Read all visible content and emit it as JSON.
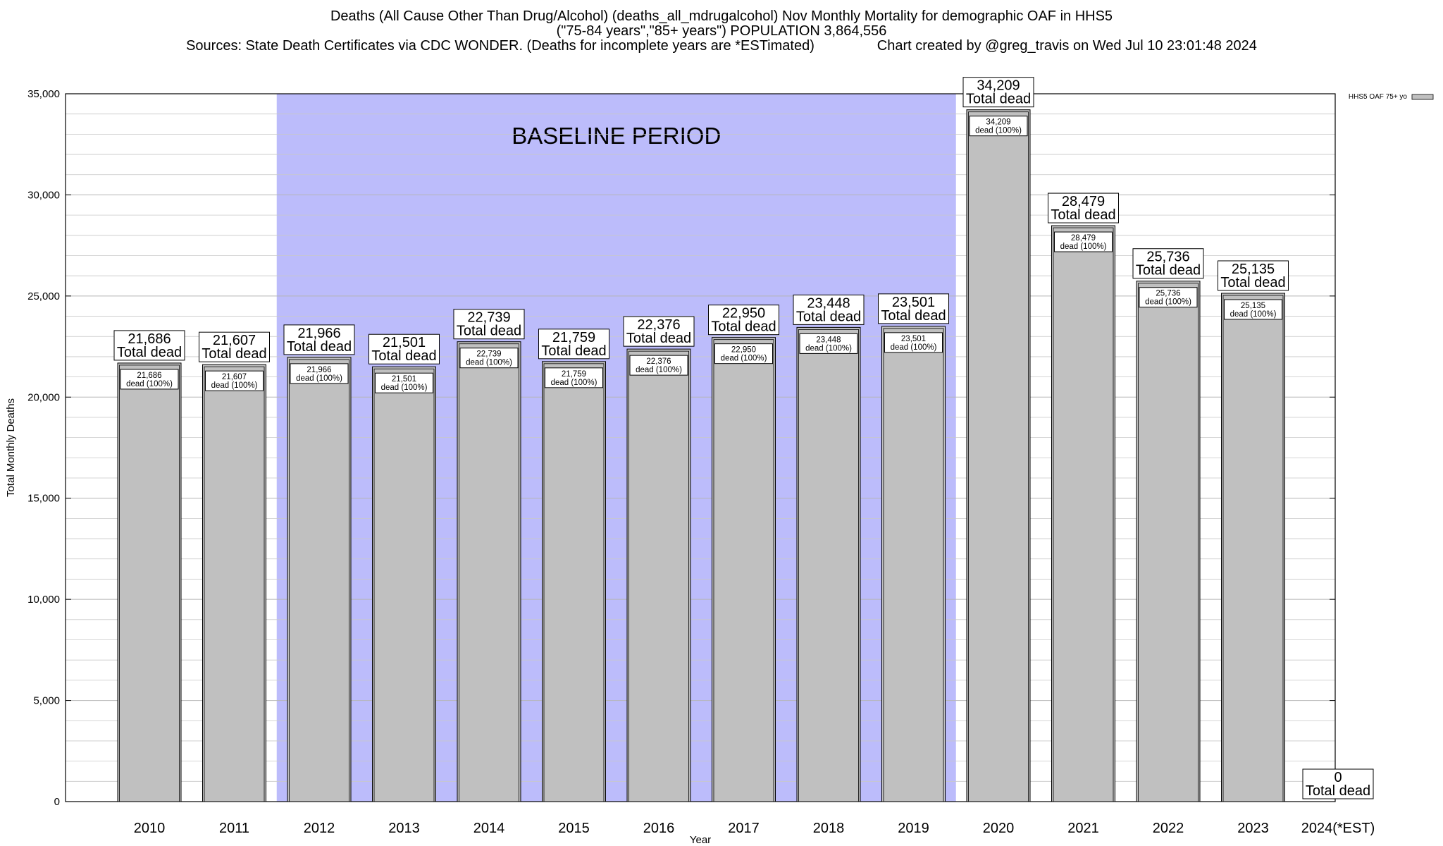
{
  "chart_data": {
    "type": "bar",
    "title_lines": [
      "Deaths (All Cause Other Than Drug/Alcohol) (deaths_all_mdrugalcohol) Nov Monthly Mortality for demographic OAF in HHS5",
      "(\"75-84 years\",\"85+ years\") POPULATION 3,864,556",
      "Sources: State Death Certificates via CDC WONDER. (Deaths for incomplete years are *ESTimated)                Chart created by @greg_travis on Wed Jul 10 23:01:48 2024"
    ],
    "xlabel": "Year",
    "ylabel": "Total Monthly Deaths",
    "ylim": [
      0,
      35000
    ],
    "yticks": [
      0,
      5000,
      10000,
      15000,
      20000,
      25000,
      30000,
      35000
    ],
    "ytick_labels": [
      "0",
      "5,000",
      "10,000",
      "15,000",
      "20,000",
      "25,000",
      "30,000",
      "35,000"
    ],
    "grid": "horizontal",
    "legend": {
      "position": "top-right",
      "entries": [
        "HHS5 OAF 75+ yo"
      ]
    },
    "categories": [
      "2010",
      "2011",
      "2012",
      "2013",
      "2014",
      "2015",
      "2016",
      "2017",
      "2018",
      "2019",
      "2020",
      "2021",
      "2022",
      "2023",
      "2024(*EST)"
    ],
    "series": [
      {
        "name": "HHS5 OAF 75+ yo",
        "values": [
          21686,
          21607,
          21966,
          21501,
          22739,
          21759,
          22376,
          22950,
          23448,
          23501,
          34209,
          28479,
          25736,
          25135,
          0
        ]
      }
    ],
    "value_labels": [
      "21,686",
      "21,607",
      "21,966",
      "21,501",
      "22,739",
      "21,759",
      "22,376",
      "22,950",
      "23,448",
      "23,501",
      "34,209",
      "28,479",
      "25,736",
      "25,135",
      "0"
    ],
    "total_label_text": "Total dead",
    "segment_label_text": "dead (100%)",
    "baseline": {
      "label": "BASELINE PERIOD",
      "start": "2012",
      "end": "2019"
    },
    "colors": {
      "bar": "#c0c0c0",
      "baseline": "#bcbcfb",
      "grid": "#c8c8c8",
      "legend_swatch": "#c0c0c0"
    }
  }
}
